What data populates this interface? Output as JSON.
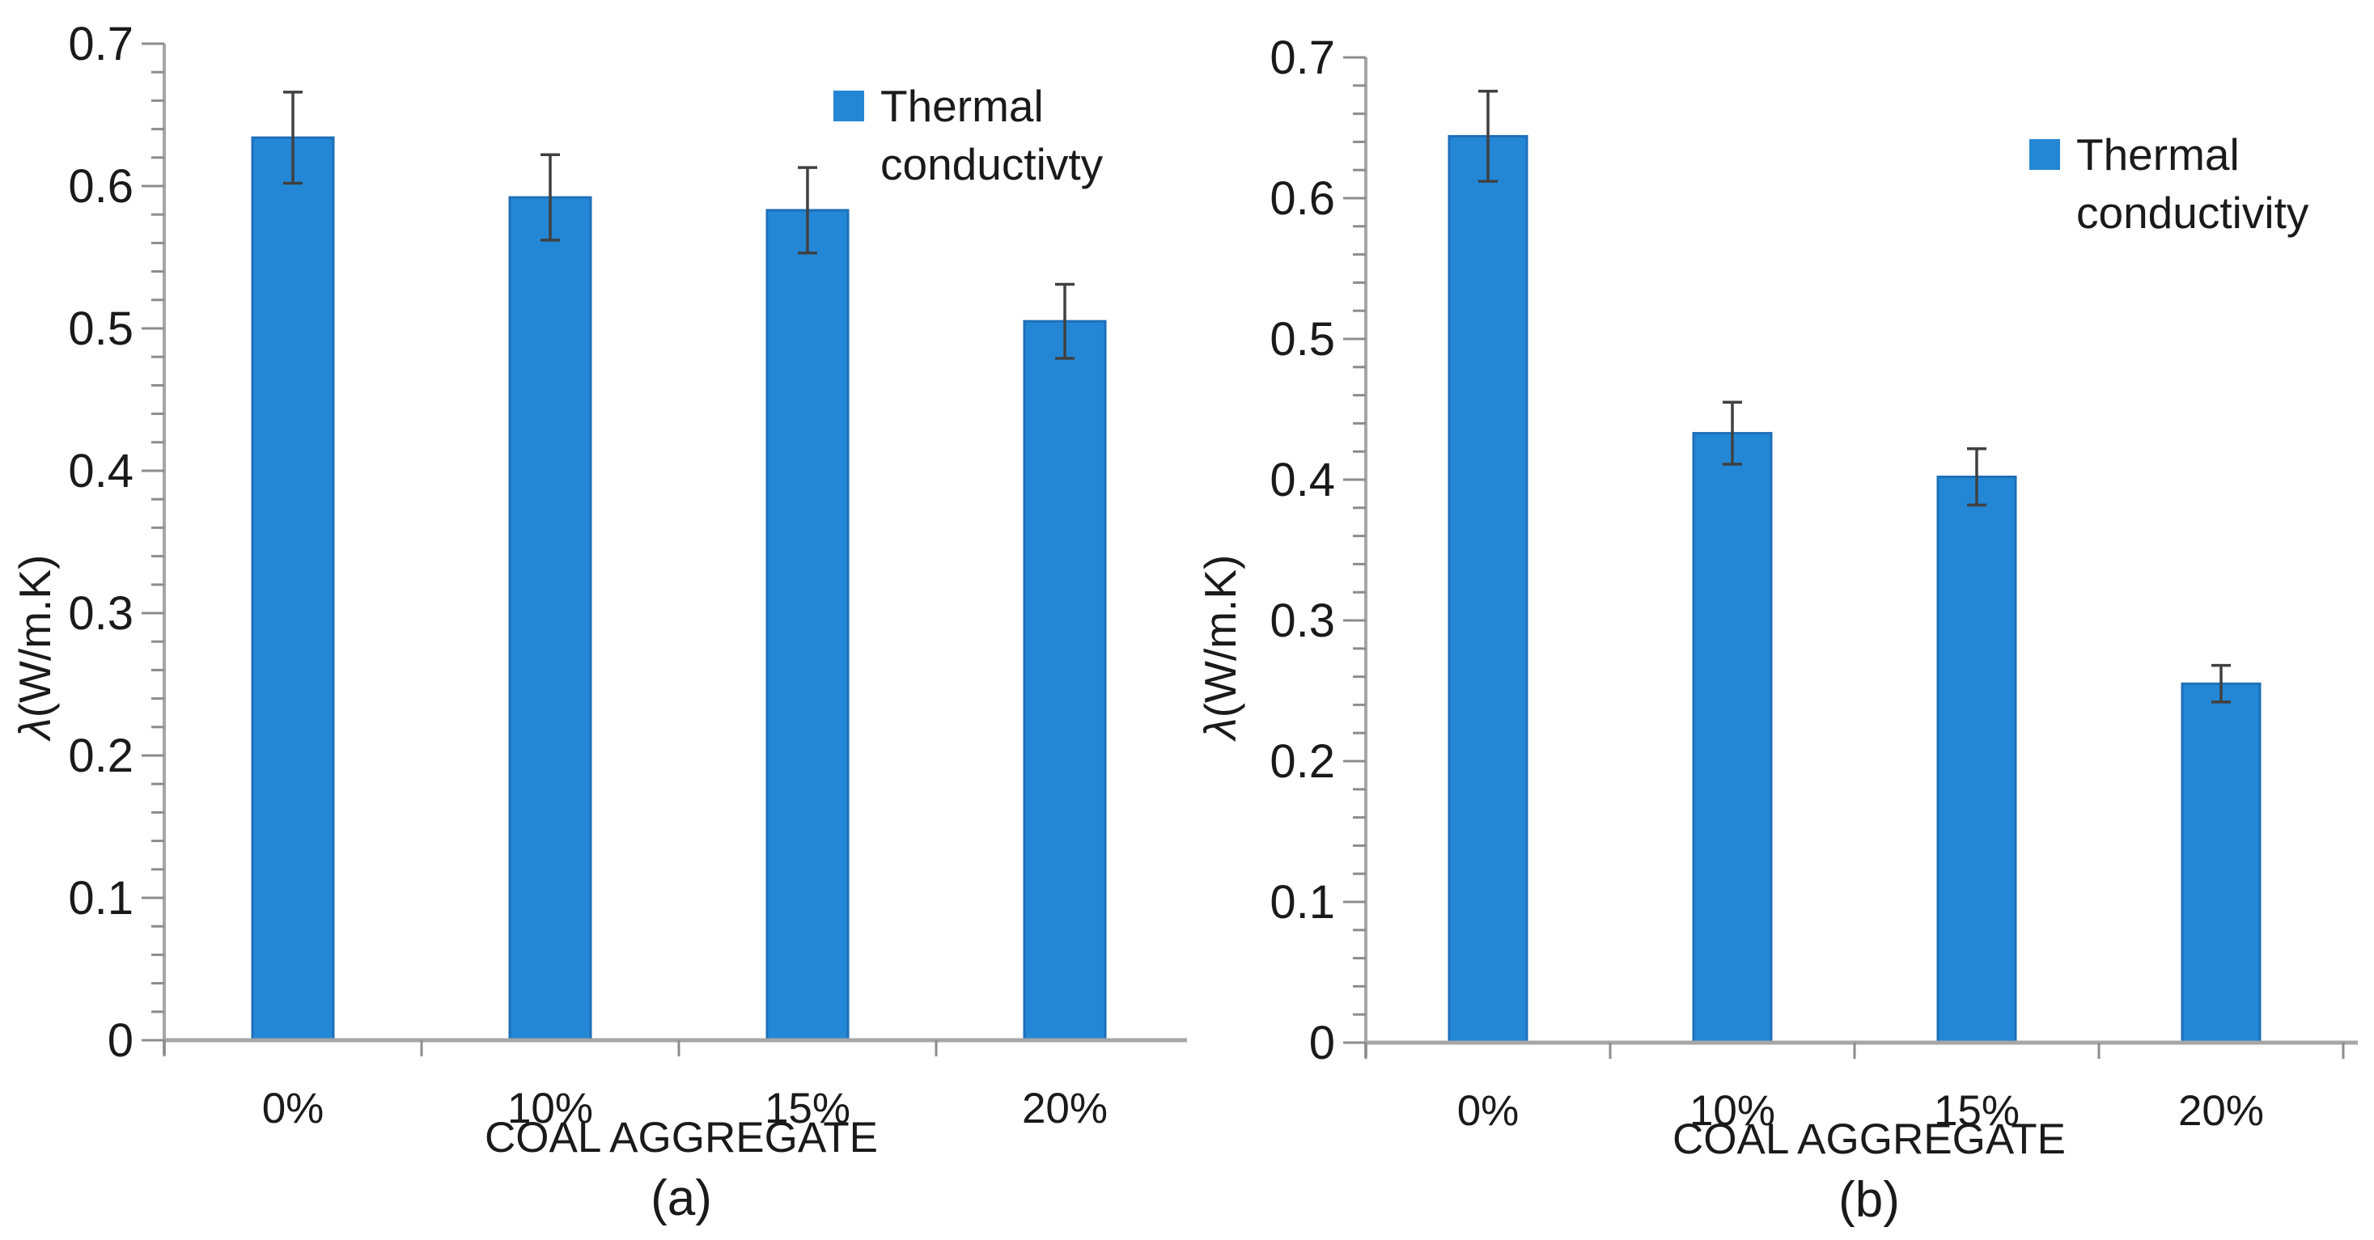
{
  "colors": {
    "bar_fill": "#2387d5",
    "bar_edge": "#1e6fb8",
    "axis_line": "#a6a6a6",
    "tick": "#8c8c8c",
    "error_bar": "#404040",
    "text": "#1a1a1a",
    "background": "#ffffff"
  },
  "chart_data": [
    {
      "type": "bar",
      "panel_label": "(a)",
      "legend": {
        "position": "top-right",
        "marker": "blue-square",
        "lines": [
          "Thermal",
          "conductivty"
        ]
      },
      "x_axis": {
        "title": "COAL AGGREGATE",
        "categories": [
          "0%",
          "10%",
          "15%",
          "20%"
        ]
      },
      "y_axis": {
        "title": "λ(W/m.K)",
        "title_symbol": "λ",
        "title_units": "(W/m.K)",
        "min": 0,
        "max": 0.7,
        "major_step": 0.1,
        "minor_step": 0.02,
        "tick_labels": [
          "0",
          "0.1",
          "0.2",
          "0.3",
          "0.4",
          "0.5",
          "0.6",
          "0.7"
        ]
      },
      "series": [
        {
          "name": "Thermal conductivty",
          "values": [
            0.634,
            0.592,
            0.583,
            0.505
          ],
          "errors": [
            0.032,
            0.03,
            0.03,
            0.026
          ]
        }
      ],
      "grid": false
    },
    {
      "type": "bar",
      "panel_label": "(b)",
      "legend": {
        "position": "top-right",
        "marker": "blue-square",
        "lines": [
          "Thermal",
          "conductivity"
        ]
      },
      "x_axis": {
        "title": "COAL AGGREGATE",
        "categories": [
          "0%",
          "10%",
          "15%",
          "20%"
        ]
      },
      "y_axis": {
        "title": "λ(W/m.K)",
        "title_symbol": "λ",
        "title_units": "(W/m.K)",
        "min": 0,
        "max": 0.7,
        "major_step": 0.1,
        "minor_step": 0.02,
        "tick_labels": [
          "0",
          "0.1",
          "0.2",
          "0.3",
          "0.4",
          "0.5",
          "0.6",
          "0.7"
        ]
      },
      "series": [
        {
          "name": "Thermal conductivity",
          "values": [
            0.644,
            0.433,
            0.402,
            0.255
          ],
          "errors": [
            0.032,
            0.022,
            0.02,
            0.013
          ]
        }
      ],
      "grid": false
    }
  ]
}
